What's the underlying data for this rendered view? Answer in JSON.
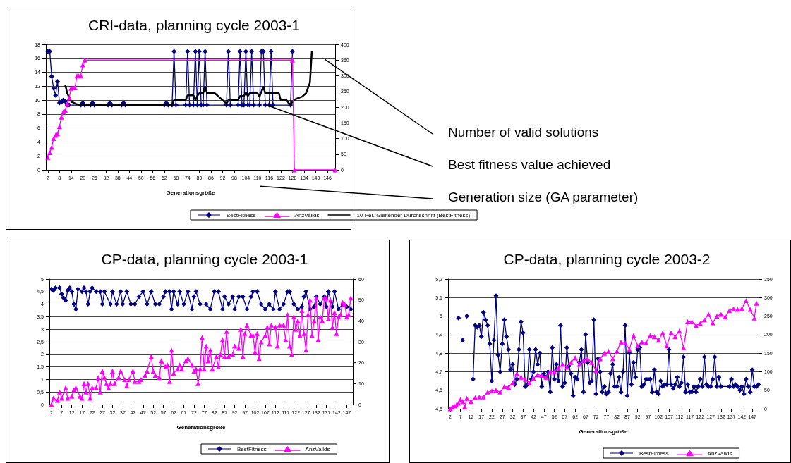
{
  "chart_data": [
    {
      "type": "line",
      "title": "CRI-data, planning cycle 2003-1",
      "xlabel": "Generationsgröße",
      "xlim": [
        1,
        150
      ],
      "xticks": [
        2,
        8,
        14,
        20,
        26,
        32,
        38,
        44,
        50,
        56,
        62,
        68,
        74,
        80,
        86,
        92,
        98,
        104,
        110,
        116,
        122,
        128,
        134,
        140,
        146
      ],
      "ylim": [
        0,
        18
      ],
      "yticks": [
        0,
        2,
        4,
        6,
        8,
        10,
        12,
        14,
        16,
        18
      ],
      "y2lim": [
        0,
        400
      ],
      "y2ticks": [
        0,
        50,
        100,
        150,
        200,
        250,
        300,
        350,
        400
      ],
      "grid": "y",
      "legend": "bottom",
      "annotations": [
        "Number of valid solutions",
        "Best fitness value achieved",
        "Generation size (GA parameter)"
      ],
      "series": [
        {
          "name": "BestFitness",
          "color": "#000080",
          "marker": "diamond",
          "x": [
            2,
            3,
            4,
            5,
            6,
            7,
            8,
            9,
            10,
            11,
            12,
            13,
            19,
            20,
            21,
            24,
            25,
            26,
            33,
            34,
            35,
            40,
            41,
            42,
            62,
            63,
            64,
            66,
            67,
            68,
            73,
            74,
            75,
            77,
            78,
            79,
            80,
            81,
            82,
            83,
            84,
            94,
            95,
            96,
            100,
            101,
            102,
            103,
            104,
            105,
            106,
            107,
            108,
            111,
            112,
            113,
            114,
            116,
            117,
            118,
            127,
            128
          ],
          "values": [
            17,
            17,
            13.4,
            11.7,
            10.7,
            12.7,
            9.6,
            9.7,
            10,
            9.8,
            9.3,
            9.3,
            9.3,
            9.6,
            9.3,
            9.3,
            9.6,
            9.3,
            9.3,
            9.6,
            9.3,
            9.3,
            9.6,
            9.3,
            9.3,
            9.6,
            9.3,
            9.3,
            17,
            9.3,
            9.3,
            17,
            9.3,
            9.3,
            17,
            9.3,
            17,
            9.3,
            9.3,
            17,
            9.3,
            9.3,
            17,
            9.3,
            9.3,
            17,
            9.3,
            9.3,
            17,
            9.3,
            9.3,
            17,
            9.3,
            9.3,
            17,
            17,
            9.3,
            9.3,
            17,
            9.3,
            9.3,
            17
          ]
        },
        {
          "name": "AnzValids",
          "color": "#ff00ff",
          "marker": "triangle",
          "axis": "y2",
          "x": [
            2,
            3,
            4,
            5,
            6,
            7,
            8,
            9,
            10,
            11,
            12,
            13,
            14,
            15,
            16,
            17,
            18,
            19,
            20,
            21,
            128,
            129,
            150
          ],
          "values": [
            40,
            55,
            72,
            100,
            110,
            115,
            138,
            168,
            185,
            190,
            210,
            230,
            260,
            262,
            262,
            300,
            300,
            300,
            335,
            350,
            350,
            0,
            0
          ]
        },
        {
          "name": "10 Per. Gleitender Durchschnitt (BestFitness)",
          "color": "#000000",
          "marker": "none",
          "x": [
            11,
            12,
            14,
            17,
            20,
            66,
            67,
            73,
            74,
            77,
            78,
            79,
            80,
            82,
            83,
            84,
            88,
            90,
            92,
            94,
            95,
            100,
            101,
            103,
            104,
            105,
            106,
            110,
            111,
            113,
            114,
            121,
            122,
            125,
            126,
            127,
            128,
            130,
            133,
            135,
            137,
            138
          ],
          "values": [
            12.2,
            11,
            9.8,
            9.4,
            9.3,
            9.3,
            10,
            10,
            10.7,
            10.7,
            10,
            10.6,
            11,
            11,
            11.9,
            11,
            11,
            10.5,
            10,
            9.5,
            10,
            10,
            10.6,
            10.6,
            11.1,
            10.6,
            11,
            11,
            10.5,
            11.9,
            11,
            11,
            10,
            10,
            9.6,
            9.3,
            9.8,
            10.2,
            10.5,
            11,
            12.5,
            17
          ]
        }
      ]
    },
    {
      "type": "line",
      "title": "CP-data, planning cycle 2003-1",
      "xlabel": "Generationsgröße",
      "xlim": [
        1,
        150
      ],
      "xticks": [
        2,
        7,
        12,
        17,
        22,
        27,
        32,
        37,
        42,
        47,
        52,
        57,
        62,
        67,
        72,
        77,
        82,
        87,
        92,
        97,
        102,
        107,
        112,
        117,
        122,
        127,
        132,
        137,
        142,
        147
      ],
      "ylim": [
        0,
        5
      ],
      "yticks": [
        0,
        {
          "value": 0.5,
          "label": "0,5"
        },
        1,
        {
          "value": 1.5,
          "label": "1,5"
        },
        2,
        {
          "value": 2.5,
          "label": "2,5"
        },
        3,
        {
          "value": 3.5,
          "label": "3,5"
        },
        4,
        {
          "value": 4.5,
          "label": "4,5"
        },
        5
      ],
      "y2lim": [
        0,
        60
      ],
      "y2ticks": [
        0,
        10,
        20,
        30,
        40,
        50,
        60
      ],
      "grid": "y",
      "legend": "bottom",
      "series": [
        {
          "name": "BestFitness",
          "color": "#000080",
          "marker": "diamond",
          "x": [
            2,
            3,
            4,
            6,
            7,
            8,
            9,
            10,
            11,
            12,
            13,
            14,
            15,
            17,
            18,
            19,
            20,
            21,
            22,
            24,
            26,
            27,
            28,
            31,
            32,
            34,
            36,
            37,
            39,
            41,
            43,
            45,
            47,
            49,
            51,
            53,
            55,
            57,
            58,
            60,
            61,
            62,
            64,
            65,
            67,
            69,
            71,
            72,
            73,
            75,
            78,
            80,
            82,
            84,
            86,
            87,
            89,
            91,
            92,
            94,
            96,
            98,
            100,
            101,
            103,
            105,
            107,
            109,
            111,
            112,
            114,
            116,
            118,
            119,
            121,
            123,
            125,
            126,
            127,
            129,
            131,
            132,
            134,
            136,
            137,
            138,
            140,
            141,
            143,
            145,
            147,
            149
          ],
          "values": [
            4.6,
            4.55,
            4.65,
            4.65,
            4.4,
            4.25,
            4.15,
            4.55,
            4.65,
            4.5,
            4,
            3.8,
            4.6,
            4.5,
            4.65,
            4.5,
            4,
            4.5,
            4.65,
            4.5,
            4.5,
            4,
            4.5,
            4,
            4.5,
            4,
            4.5,
            4,
            4.5,
            4,
            4,
            4.3,
            4.5,
            4,
            4.5,
            4,
            4,
            4.3,
            4.5,
            4.5,
            3.8,
            4.5,
            4,
            4.5,
            4,
            4.5,
            3.8,
            4.3,
            4.5,
            4,
            4,
            3.8,
            4.5,
            4.5,
            3.8,
            4.3,
            4,
            4.3,
            3.8,
            4.3,
            4.3,
            3.8,
            4.3,
            4.5,
            4.5,
            4,
            3.8,
            4,
            3.8,
            4.5,
            3.8,
            4,
            4.5,
            4.5,
            4,
            3.8,
            3.9,
            4.3,
            4.5,
            3.8,
            3.9,
            4.3,
            4,
            4.3,
            3.9,
            4.5,
            3.9,
            4.5,
            3.8,
            4,
            3.9,
            3.8
          ]
        },
        {
          "name": "AnzValids",
          "color": "#ff00ff",
          "marker": "triangle",
          "axis": "y2",
          "x": [
            2,
            3,
            5,
            6,
            7,
            9,
            10,
            12,
            13,
            14,
            16,
            17,
            18,
            19,
            20,
            21,
            22,
            24,
            25,
            26,
            27,
            28,
            29,
            30,
            31,
            32,
            33,
            35,
            36,
            38,
            39,
            40,
            42,
            43,
            45,
            46,
            48,
            49,
            51,
            52,
            53,
            55,
            56,
            58,
            59,
            60,
            61,
            62,
            64,
            65,
            66,
            68,
            69,
            71,
            72,
            73,
            74,
            75,
            76,
            77,
            78,
            79,
            80,
            81,
            83,
            84,
            85,
            86,
            87,
            88,
            89,
            91,
            92,
            94,
            95,
            96,
            97,
            98,
            100,
            101,
            102,
            103,
            104,
            105,
            107,
            108,
            109,
            110,
            112,
            113,
            114,
            116,
            117,
            118,
            119,
            120,
            121,
            122,
            123,
            124,
            125,
            126,
            127,
            128,
            129,
            130,
            131,
            132,
            133,
            134,
            135,
            136,
            137,
            138,
            139,
            140,
            141,
            142,
            143,
            144,
            145,
            146,
            147,
            148,
            149
          ],
          "values": [
            0,
            3,
            2,
            6,
            3,
            8,
            3,
            4,
            7,
            8,
            4,
            3,
            10,
            6,
            10,
            3,
            8,
            8,
            13,
            6,
            16,
            13,
            10,
            8,
            10,
            16,
            10,
            13,
            16,
            12,
            9,
            12,
            16,
            11,
            11,
            12,
            14,
            16,
            23,
            16,
            14,
            13,
            21,
            18,
            19,
            11,
            26,
            15,
            17,
            19,
            17,
            21,
            22,
            19,
            16,
            17,
            10,
            17,
            32,
            17,
            28,
            21,
            26,
            17,
            23,
            18,
            24,
            31,
            23,
            35,
            23,
            24,
            28,
            27,
            36,
            23,
            34,
            38,
            33,
            33,
            25,
            34,
            22,
            30,
            33,
            37,
            29,
            38,
            37,
            28,
            38,
            38,
            31,
            43,
            28,
            24,
            42,
            36,
            40,
            33,
            45,
            34,
            26,
            43,
            50,
            33,
            40,
            51,
            31,
            42,
            40,
            51,
            51,
            41,
            50,
            37,
            44,
            34,
            42,
            43,
            49,
            48,
            42,
            43,
            51
          ]
        }
      ]
    },
    {
      "type": "line",
      "title": "CP-data, planning cycle 2003-2",
      "xlabel": "Generationsgröße",
      "xlim": [
        1,
        150
      ],
      "xticks": [
        2,
        7,
        12,
        17,
        22,
        27,
        32,
        37,
        42,
        47,
        52,
        57,
        62,
        67,
        72,
        77,
        82,
        87,
        92,
        97,
        102,
        107,
        112,
        117,
        122,
        127,
        132,
        137,
        142,
        147
      ],
      "ylim": [
        4.5,
        5.2
      ],
      "yticks": [
        {
          "value": 4.5,
          "label": "4,5"
        },
        {
          "value": 4.6,
          "label": "4,6"
        },
        {
          "value": 4.7,
          "label": "4,7"
        },
        {
          "value": 4.8,
          "label": "4,8"
        },
        {
          "value": 4.9,
          "label": "4,9"
        },
        5,
        {
          "value": 5.1,
          "label": "5,1"
        },
        {
          "value": 5.2,
          "label": "5,2"
        }
      ],
      "y2lim": [
        0,
        350
      ],
      "y2ticks": [
        0,
        50,
        100,
        150,
        200,
        250,
        300,
        350
      ],
      "grid": "y",
      "legend": "bottom",
      "series": [
        {
          "name": "BestFitness",
          "color": "#000080",
          "marker": "diamond",
          "x": [
            6,
            7,
            8,
            9,
            10,
            11,
            12,
            13,
            14,
            15,
            16,
            17,
            18,
            19,
            20,
            21,
            22,
            23,
            24,
            25,
            26,
            27,
            28,
            29,
            30,
            31,
            32,
            33,
            34,
            35,
            36,
            37,
            38,
            39,
            40,
            41,
            42,
            43,
            44,
            45,
            46,
            47,
            48,
            49,
            50,
            51,
            52,
            53,
            54,
            55,
            56,
            57,
            58,
            59,
            60,
            61,
            62,
            63,
            64,
            65,
            66,
            67,
            68,
            69,
            70,
            71,
            72,
            73,
            74,
            75,
            76,
            77,
            78,
            79,
            80,
            81,
            82,
            83,
            84,
            85,
            86,
            87,
            88,
            89,
            90,
            91,
            92,
            93,
            94,
            95,
            96,
            97,
            98,
            99,
            100,
            101,
            102,
            103,
            104,
            105,
            106,
            107,
            108,
            109,
            110,
            111,
            112,
            113,
            114,
            115,
            116,
            117,
            118,
            119,
            120,
            121,
            122,
            123,
            124,
            125,
            126,
            127,
            128,
            129,
            130,
            131,
            132,
            136,
            137,
            138,
            139,
            140,
            141,
            142,
            143,
            144,
            145,
            146,
            147,
            148,
            149,
            150
          ],
          "values": [
            4.99,
            null,
            4.87,
            null,
            5.0,
            null,
            null,
            4.66,
            4.95,
            4.94,
            4.95,
            4.89,
            5.02,
            4.98,
            4.95,
            4.85,
            4.65,
            4.87,
            5.11,
            4.79,
            4.7,
            4.85,
            4.98,
            4.89,
            4.82,
            4.71,
            4.74,
            4.63,
            4.66,
            4.82,
            4.97,
            4.91,
            4.62,
            4.63,
            4.82,
            4.66,
            4.7,
            4.82,
            4.74,
            4.8,
            4.62,
            4.69,
            4.67,
            4.7,
            4.59,
            4.83,
            4.66,
            4.74,
            4.65,
            4.95,
            4.62,
            4.64,
            4.83,
            4.73,
            4.69,
            4.57,
            4.67,
            4.66,
            4.75,
            4.82,
            4.59,
            4.9,
            4.75,
            4.64,
            4.65,
            4.98,
            4.58,
            4.77,
            4.7,
            4.59,
            4.62,
            4.58,
            4.59,
            4.69,
            4.74,
            4.62,
            4.62,
            4.67,
            4.59,
            4.7,
            4.95,
            4.57,
            4.8,
            4.63,
            4.75,
            4.67,
            4.82,
            4.83,
            4.62,
            4.63,
            4.66,
            4.66,
            4.66,
            4.59,
            4.71,
            4.59,
            4.58,
            4.65,
            4.62,
            4.63,
            4.63,
            4.82,
            4.63,
            4.61,
            4.63,
            4.67,
            4.62,
            4.64,
            4.78,
            4.59,
            4.63,
            4.59,
            4.59,
            4.62,
            4.59,
            4.62,
            4.66,
            4.62,
            4.78,
            4.63,
            4.62,
            4.62,
            4.66,
            4.78,
            4.62,
            4.67,
            4.62,
            4.62,
            4.66,
            4.62,
            4.63,
            4.62,
            4.6,
            4.62,
            4.58,
            4.66,
            4.62,
            4.59,
            4.71,
            4.62,
            4.62,
            4.63
          ]
        },
        {
          "name": "AnzValids",
          "color": "#ff00ff",
          "marker": "triangle",
          "axis": "y2",
          "x": [
            2,
            3,
            4,
            5,
            6,
            7,
            8,
            9,
            10,
            12,
            14,
            16,
            18,
            20,
            22,
            24,
            26,
            28,
            30,
            32,
            34,
            36,
            38,
            40,
            42,
            44,
            46,
            48,
            50,
            52,
            54,
            56,
            58,
            60,
            62,
            64,
            66,
            68,
            70,
            72,
            74,
            76,
            78,
            80,
            82,
            84,
            86,
            88,
            90,
            92,
            94,
            96,
            98,
            100,
            102,
            104,
            106,
            108,
            110,
            112,
            114,
            116,
            118,
            120,
            122,
            124,
            126,
            128,
            130,
            132,
            134,
            136,
            138,
            140,
            142,
            144,
            146,
            148,
            149
          ],
          "values": [
            0,
            5,
            8,
            10,
            15,
            25,
            20,
            5,
            28,
            20,
            30,
            32,
            32,
            45,
            48,
            50,
            45,
            60,
            58,
            70,
            95,
            85,
            80,
            70,
            82,
            92,
            90,
            85,
            100,
            100,
            110,
            120,
            112,
            125,
            138,
            120,
            130,
            135,
            125,
            103,
            135,
            150,
            155,
            135,
            155,
            180,
            178,
            160,
            198,
            170,
            180,
            178,
            198,
            195,
            185,
            205,
            170,
            205,
            195,
            210,
            165,
            235,
            235,
            225,
            230,
            240,
            255,
            232,
            250,
            255,
            248,
            265,
            270,
            268,
            270,
            292,
            268,
            245,
            285
          ]
        }
      ]
    }
  ]
}
